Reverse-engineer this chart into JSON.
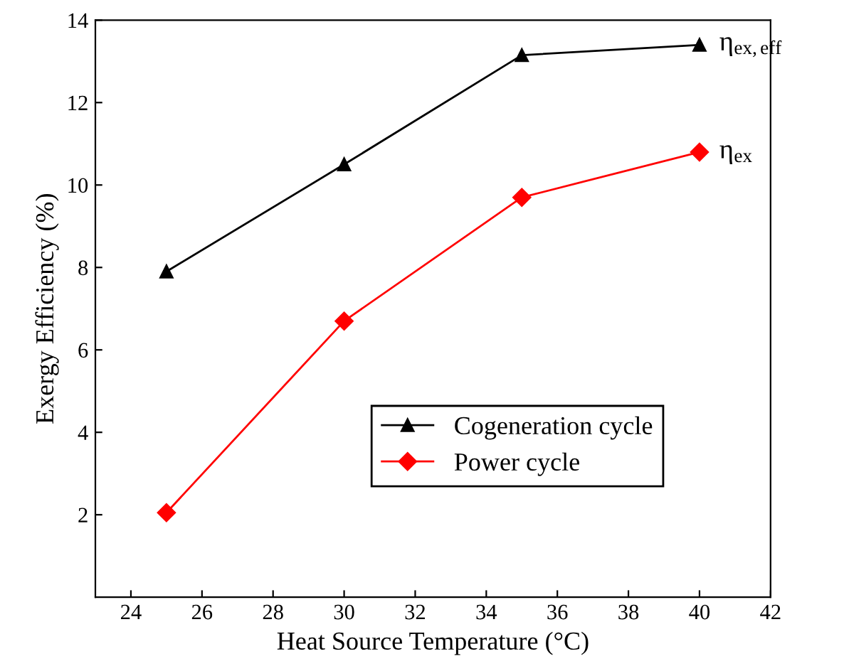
{
  "chart_data": {
    "type": "line",
    "xlabel": "Heat Source Temperature (°C)",
    "ylabel": "Exergy Efficiency (%)",
    "x": [
      25,
      30,
      35,
      40
    ],
    "series": [
      {
        "name": "Cogeneration cycle",
        "color": "#000000",
        "marker": "triangle",
        "values": [
          7.9,
          10.5,
          13.15,
          13.4
        ]
      },
      {
        "name": "Power cycle",
        "color": "#ff0000",
        "marker": "diamond",
        "values": [
          2.05,
          6.7,
          9.7,
          10.8
        ]
      }
    ],
    "xlim": [
      23,
      42
    ],
    "xticks": [
      24,
      26,
      28,
      30,
      32,
      34,
      36,
      38,
      40,
      42
    ],
    "ylim": [
      0,
      14
    ],
    "yticks": [
      2,
      4,
      6,
      8,
      10,
      12,
      14
    ],
    "annotations": [
      {
        "text": "η$_{ex,eff}$",
        "x": 40,
        "y": 13.4
      },
      {
        "text": "η$_{ex}$",
        "x": 40,
        "y": 10.8
      }
    ],
    "legend": "bottom right",
    "grid": false,
    "line_style": "solid"
  }
}
